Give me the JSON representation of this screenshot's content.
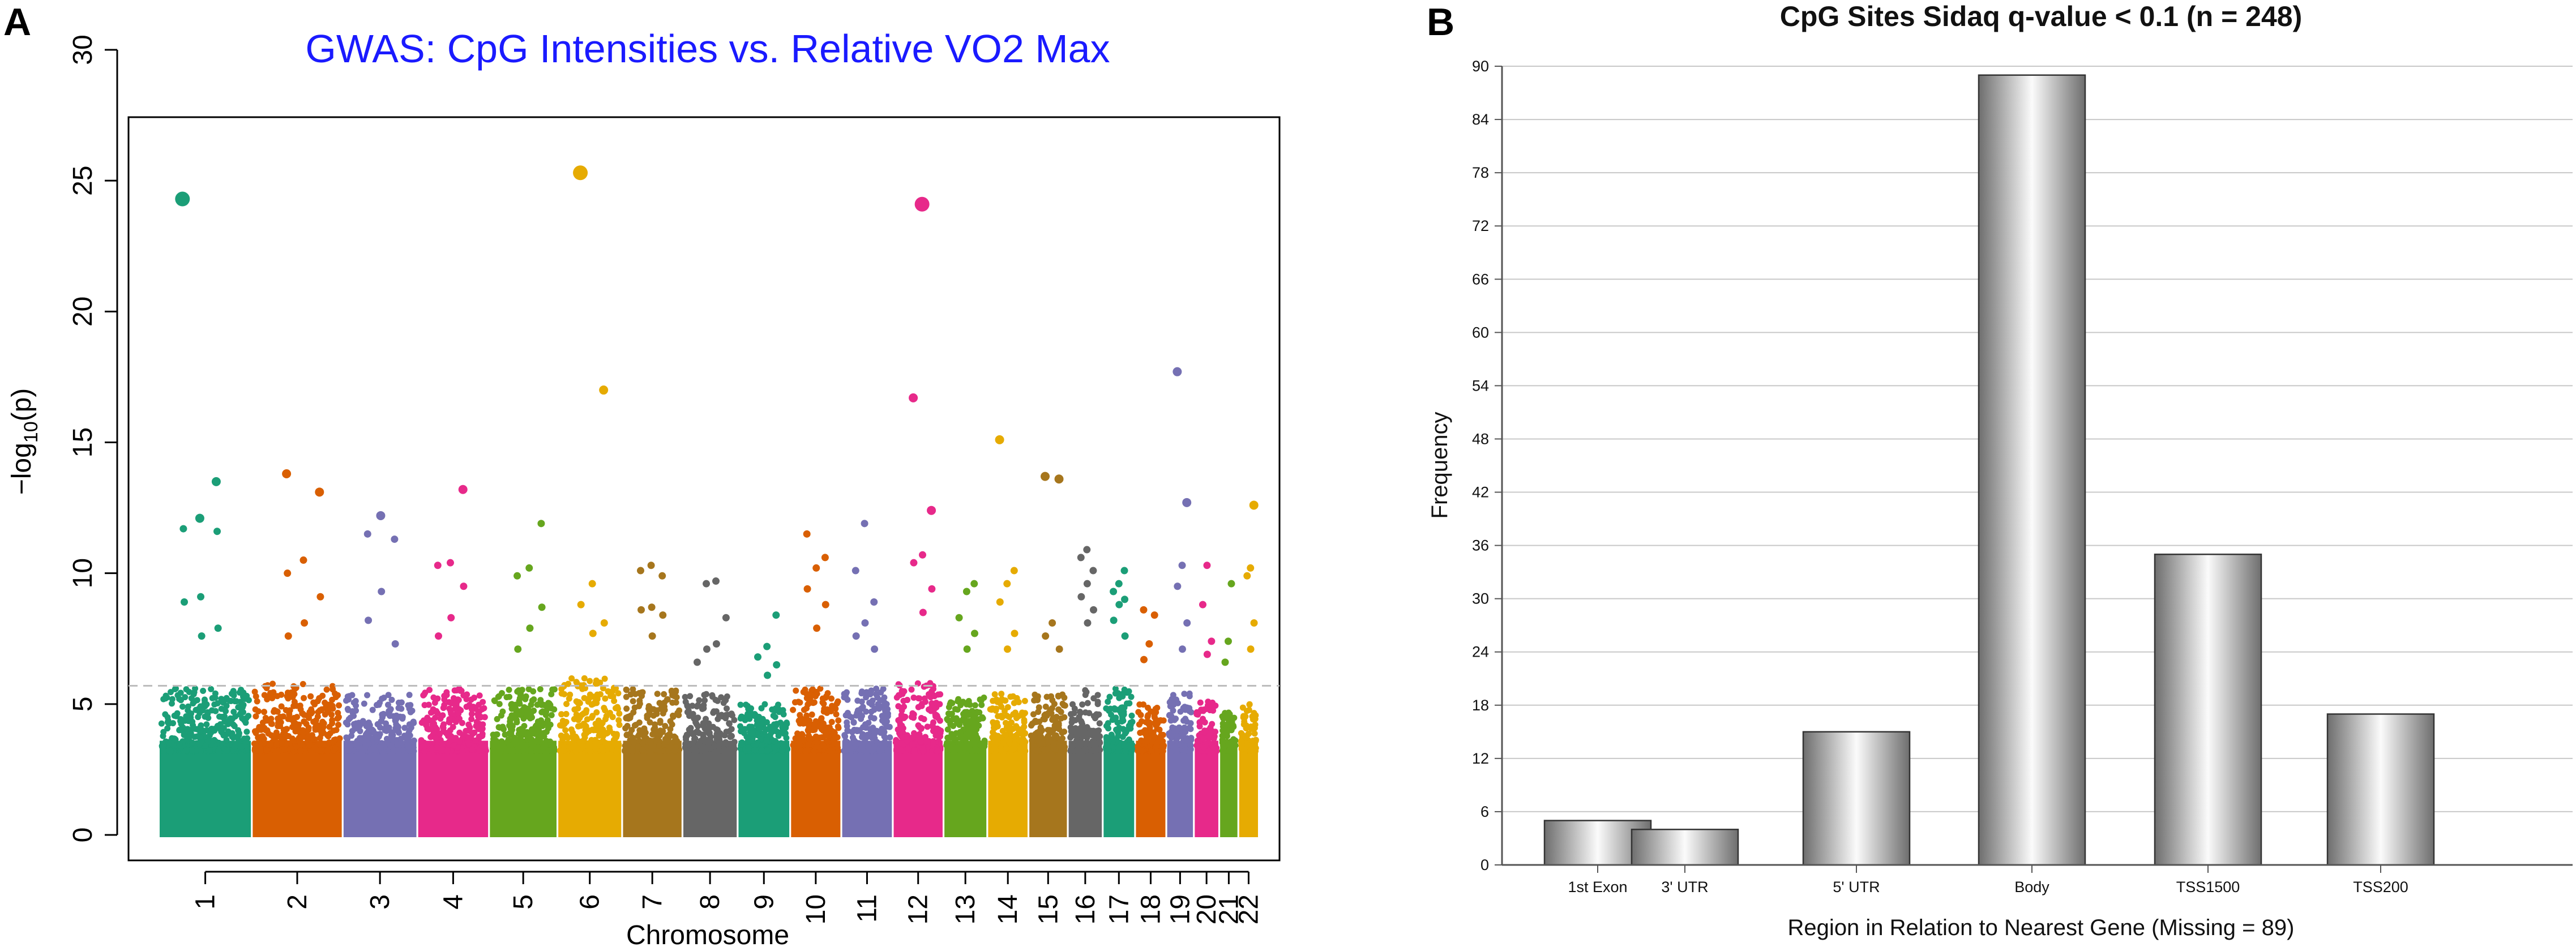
{
  "panel_a_label": "A",
  "panel_b_label": "B",
  "chart_data": [
    {
      "type": "scatter",
      "subtype": "manhattan",
      "title": "GWAS: CpG Intensities vs. Relative VO2 Max",
      "title_color": "#1a1aff",
      "xlabel": "Chromosome",
      "ylabel_prefix": "−log",
      "ylabel_sub": "10",
      "ylabel_suffix": "(p)",
      "ylim": [
        0,
        30
      ],
      "yticks": [
        0,
        5,
        10,
        15,
        20,
        25,
        30
      ],
      "significance_line": 5.7,
      "categories": [
        "1",
        "2",
        "3",
        "4",
        "5",
        "6",
        "7",
        "8",
        "9",
        "10",
        "11",
        "12",
        "13",
        "14",
        "15",
        "16",
        "17",
        "18",
        "19",
        "20",
        "21",
        "22"
      ],
      "colors": [
        "#1b9e77",
        "#d95f02",
        "#7570b3",
        "#e7298a",
        "#66a61e",
        "#e6ab02",
        "#a6761d",
        "#666666"
      ],
      "series": [
        {
          "name": "1",
          "dense_max": 5.6,
          "top_hits": [
            24.3,
            13.5,
            12.1,
            11.7,
            11.6,
            9.1,
            8.9,
            7.9,
            7.6
          ]
        },
        {
          "name": "2",
          "dense_max": 5.8,
          "top_hits": [
            13.8,
            13.1,
            10.5,
            10.0,
            9.1,
            8.1,
            7.6
          ]
        },
        {
          "name": "3",
          "dense_max": 5.4,
          "top_hits": [
            12.2,
            11.5,
            11.3,
            9.3,
            8.2,
            7.3
          ]
        },
        {
          "name": "4",
          "dense_max": 5.6,
          "top_hits": [
            13.2,
            10.4,
            10.3,
            9.5,
            8.3,
            7.6
          ]
        },
        {
          "name": "5",
          "dense_max": 5.6,
          "top_hits": [
            11.9,
            10.2,
            9.9,
            8.7,
            7.9,
            7.1
          ]
        },
        {
          "name": "6",
          "dense_max": 6.0,
          "top_hits": [
            25.3,
            17.0,
            9.6,
            8.8,
            8.1,
            7.7
          ]
        },
        {
          "name": "7",
          "dense_max": 5.6,
          "top_hits": [
            10.3,
            10.1,
            9.9,
            8.7,
            8.6,
            8.4,
            7.6
          ]
        },
        {
          "name": "8",
          "dense_max": 5.4,
          "top_hits": [
            9.7,
            9.6,
            8.3,
            7.3,
            7.1,
            6.6
          ]
        },
        {
          "name": "9",
          "dense_max": 5.0,
          "top_hits": [
            8.4,
            7.2,
            6.8,
            6.5,
            6.1
          ]
        },
        {
          "name": "10",
          "dense_max": 5.6,
          "top_hits": [
            11.5,
            10.6,
            10.2,
            9.4,
            8.8,
            7.9
          ]
        },
        {
          "name": "11",
          "dense_max": 5.6,
          "top_hits": [
            11.9,
            10.1,
            8.9,
            8.1,
            7.6,
            7.1
          ]
        },
        {
          "name": "12",
          "dense_max": 5.8,
          "top_hits": [
            24.1,
            16.7,
            12.4,
            10.7,
            10.4,
            9.4,
            8.5
          ]
        },
        {
          "name": "13",
          "dense_max": 5.3,
          "top_hits": [
            9.6,
            9.3,
            8.3,
            7.7,
            7.1
          ]
        },
        {
          "name": "14",
          "dense_max": 5.4,
          "top_hits": [
            15.1,
            10.1,
            9.6,
            8.9,
            7.7,
            7.1
          ]
        },
        {
          "name": "15",
          "dense_max": 5.4,
          "top_hits": [
            13.7,
            13.6,
            8.1,
            7.6,
            7.1
          ]
        },
        {
          "name": "16",
          "dense_max": 5.6,
          "top_hits": [
            10.9,
            10.6,
            10.1,
            9.6,
            9.1,
            8.6,
            8.1
          ]
        },
        {
          "name": "17",
          "dense_max": 5.6,
          "top_hits": [
            10.1,
            9.6,
            9.3,
            9.0,
            8.8,
            8.2,
            7.6
          ]
        },
        {
          "name": "18",
          "dense_max": 5.0,
          "top_hits": [
            8.6,
            8.4,
            7.3,
            6.7
          ]
        },
        {
          "name": "19",
          "dense_max": 5.4,
          "top_hits": [
            17.7,
            12.7,
            10.3,
            9.5,
            8.1,
            7.1
          ]
        },
        {
          "name": "20",
          "dense_max": 5.1,
          "top_hits": [
            10.3,
            8.8,
            7.4,
            6.9
          ]
        },
        {
          "name": "21",
          "dense_max": 4.8,
          "top_hits": [
            9.6,
            7.4,
            6.6
          ]
        },
        {
          "name": "22",
          "dense_max": 5.0,
          "top_hits": [
            12.6,
            10.2,
            9.9,
            8.1,
            7.1
          ]
        }
      ]
    },
    {
      "type": "bar",
      "title": "CpG Sites Sidaq q-value < 0.1 (n = 248)",
      "xlabel": "Region in Relation to Nearest Gene (Missing = 89)",
      "ylabel": "Frequency",
      "ylim": [
        0,
        90
      ],
      "yticks": [
        0,
        6,
        12,
        18,
        24,
        30,
        36,
        42,
        48,
        54,
        60,
        66,
        72,
        78,
        84,
        90
      ],
      "categories": [
        "1st Exon",
        "3' UTR",
        "5' UTR",
        "Body",
        "TSS1500",
        "TSS200"
      ],
      "values": [
        5,
        4,
        15,
        89,
        35,
        17
      ]
    }
  ]
}
